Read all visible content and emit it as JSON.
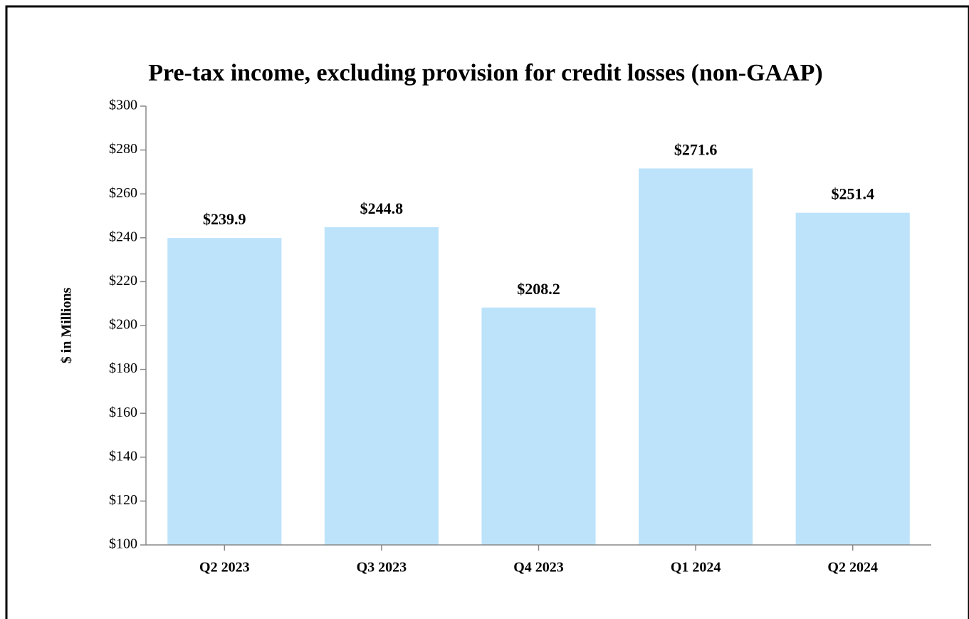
{
  "chart_data": {
    "type": "bar",
    "title": "Pre-tax income, excluding provision for credit losses (non-GAAP)",
    "ylabel": "$ in Millions",
    "categories": [
      "Q2 2023",
      "Q3 2023",
      "Q4 2023",
      "Q1 2024",
      "Q2 2024"
    ],
    "values": [
      239.9,
      244.8,
      208.2,
      271.6,
      251.4
    ],
    "value_labels": [
      "$239.9",
      "$244.8",
      "$208.2",
      "$271.6",
      "$251.4"
    ],
    "color": "#bde3fb",
    "ylim": [
      100,
      300
    ],
    "yticks": [
      {
        "value": 100,
        "label": "$100"
      },
      {
        "value": 120,
        "label": "$120"
      },
      {
        "value": 140,
        "label": "$140"
      },
      {
        "value": 160,
        "label": "$160"
      },
      {
        "value": 180,
        "label": "$180"
      },
      {
        "value": 200,
        "label": "$200"
      },
      {
        "value": 220,
        "label": "$220"
      },
      {
        "value": 240,
        "label": "$240"
      },
      {
        "value": 260,
        "label": "$260"
      },
      {
        "value": 280,
        "label": "$280"
      },
      {
        "value": 300,
        "label": "$300"
      }
    ],
    "grid": false
  }
}
